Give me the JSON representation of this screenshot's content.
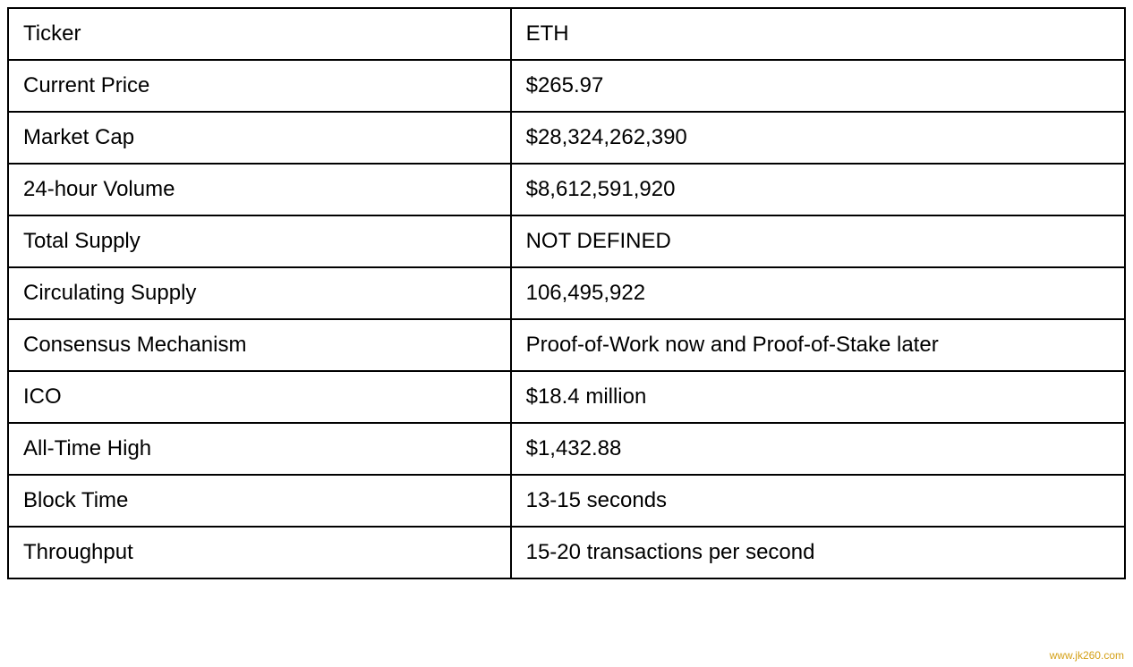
{
  "table": {
    "rows": [
      {
        "label": "Ticker",
        "value": "ETH"
      },
      {
        "label": "Current Price",
        "value": "$265.97"
      },
      {
        "label": "Market Cap",
        "value": "$28,324,262,390"
      },
      {
        "label": "24-hour Volume",
        "value": "$8,612,591,920"
      },
      {
        "label": "Total Supply",
        "value": "NOT DEFINED"
      },
      {
        "label": "Circulating Supply",
        "value": "106,495,922"
      },
      {
        "label": "Consensus Mechanism",
        "value": "Proof-of-Work now and Proof-of-Stake later"
      },
      {
        "label": "ICO",
        "value": "$18.4 million"
      },
      {
        "label": "All-Time High",
        "value": "$1,432.88"
      },
      {
        "label": "Block Time",
        "value": "13-15 seconds"
      },
      {
        "label": "Throughput",
        "value": "15-20 transactions per second"
      }
    ],
    "border_color": "#000000",
    "background_color": "#ffffff",
    "text_color": "#000000",
    "font_size": 24,
    "cell_padding": 14
  },
  "watermark": {
    "text": "www.jk260.com",
    "color": "#d4a017"
  }
}
